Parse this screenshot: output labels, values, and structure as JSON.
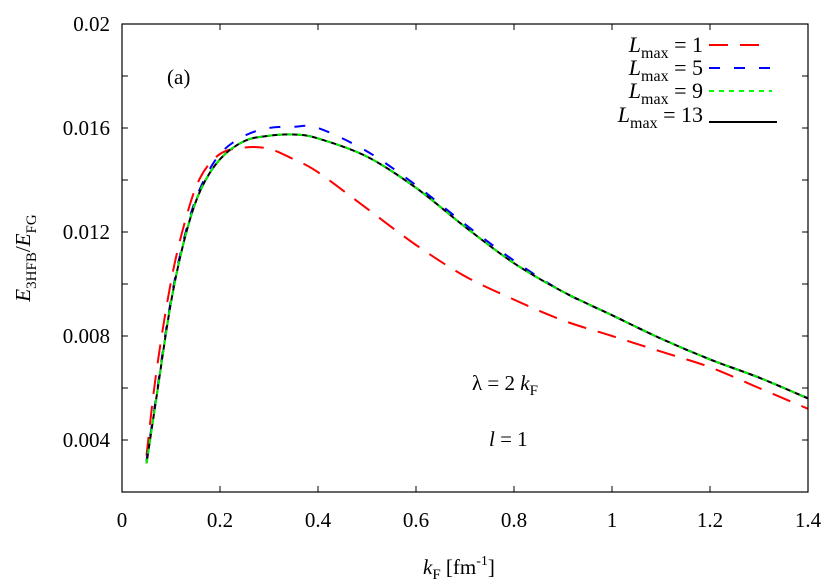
{
  "chart_data": {
    "type": "line",
    "title": "",
    "panel_label": "(a)",
    "xlabel": "k_F [fm^-1]",
    "ylabel": "E_3HFB/E_FG",
    "xlim": [
      0,
      1.4
    ],
    "ylim": [
      0.002,
      0.02
    ],
    "x_ticks": [
      "0",
      "0.2",
      "0.4",
      "0.6",
      "0.8",
      "1",
      "1.2",
      "1.4"
    ],
    "y_ticks": [
      "0.004",
      "0.008",
      "0.012",
      "0.016",
      "0.02"
    ],
    "grid": false,
    "legend_position": "upper right",
    "annotations": [
      "λ = 2 k_F",
      "l = 1"
    ],
    "x": [
      0.05,
      0.07,
      0.1,
      0.13,
      0.16,
      0.2,
      0.25,
      0.3,
      0.35,
      0.4,
      0.5,
      0.6,
      0.7,
      0.8,
      0.9,
      1.0,
      1.1,
      1.2,
      1.3,
      1.4
    ],
    "series": [
      {
        "name": "L_max = 1",
        "color": "#ff0000",
        "dash": "long",
        "values": [
          0.0034,
          0.0066,
          0.0101,
          0.0125,
          0.0141,
          0.015,
          0.01525,
          0.0152,
          0.0148,
          0.0143,
          0.0129,
          0.0115,
          0.0103,
          0.0094,
          0.0086,
          0.008,
          0.0074,
          0.0068,
          0.006,
          0.0052
        ]
      },
      {
        "name": "L_max = 5",
        "color": "#0000ff",
        "dash": "medium",
        "values": [
          0.0032,
          0.0057,
          0.0094,
          0.012,
          0.0137,
          0.015,
          0.0157,
          0.016,
          0.01605,
          0.016,
          0.0151,
          0.0138,
          0.0123,
          0.0109,
          0.0097,
          0.0088,
          0.0079,
          0.0071,
          0.0064,
          0.0056
        ]
      },
      {
        "name": "L_max = 9",
        "color": "#00cc00",
        "dash": "short",
        "values": [
          0.0031,
          0.0056,
          0.0093,
          0.0119,
          0.0136,
          0.0148,
          0.0155,
          0.0157,
          0.01575,
          0.0156,
          0.0149,
          0.0137,
          0.0122,
          0.0108,
          0.0097,
          0.0088,
          0.0079,
          0.0071,
          0.0064,
          0.0056
        ]
      },
      {
        "name": "L_max = 13",
        "color": "#000000",
        "dash": "solid",
        "values": [
          0.0031,
          0.0056,
          0.0093,
          0.0119,
          0.0136,
          0.0148,
          0.0155,
          0.0157,
          0.01575,
          0.0156,
          0.0149,
          0.0137,
          0.0122,
          0.0108,
          0.0097,
          0.0088,
          0.0079,
          0.0071,
          0.0064,
          0.0056
        ]
      }
    ]
  },
  "text": {
    "panel_label": "(a)",
    "legend": [
      {
        "L": "L",
        "sub": "max",
        "rest": " = 1"
      },
      {
        "L": "L",
        "sub": "max",
        "rest": " = 5"
      },
      {
        "L": "L",
        "sub": "max",
        "rest": " = 9"
      },
      {
        "L": "L",
        "sub": "max",
        "rest": " = 13"
      }
    ],
    "anno_lambda": {
      "pre": "λ = 2 ",
      "k": "k",
      "sub": "F"
    },
    "anno_l": {
      "l": "l",
      "rest": " = 1"
    },
    "xlabel": {
      "k": "k",
      "sub": "F",
      "rest": " [fm",
      "sup": "-1",
      "close": "]"
    },
    "ylabel": {
      "E1": "E",
      "sub1": "3HFB",
      "slash": "/",
      "E2": "E",
      "sub2": "FG"
    }
  }
}
